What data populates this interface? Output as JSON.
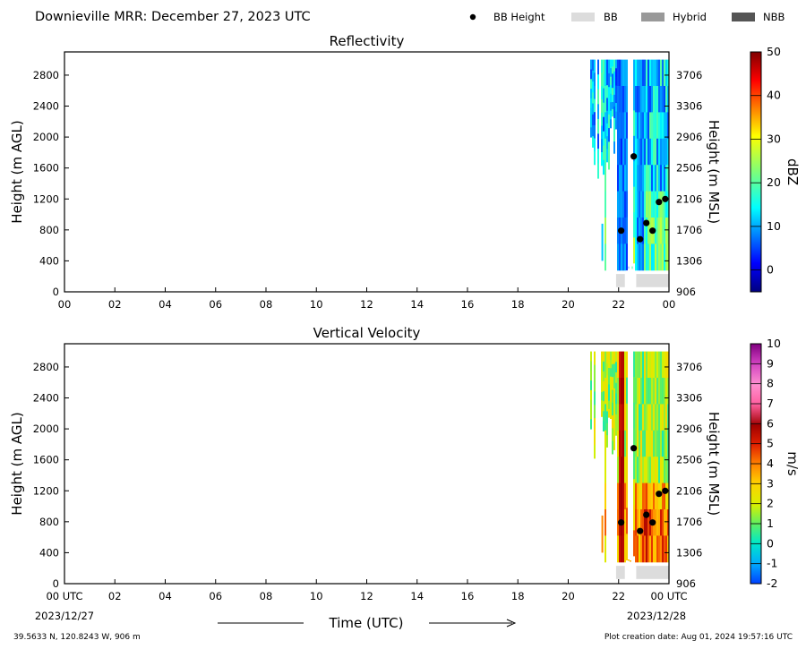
{
  "header": {
    "title": "Downieville MRR:  December 27, 2023 UTC",
    "legend": [
      {
        "label": "BB Height",
        "marker": "dot",
        "color": "#000000"
      },
      {
        "label": "BB",
        "marker": "box",
        "color": "#dcdcdc"
      },
      {
        "label": "Hybrid",
        "marker": "box",
        "color": "#999999"
      },
      {
        "label": "NBB",
        "marker": "box",
        "color": "#555555"
      }
    ]
  },
  "footer": {
    "location": "39.5633 N, 120.8243 W, 906 m",
    "creation": "Plot creation date: Aug 01, 2024 19:57:16 UTC",
    "start_date": "2023/12/27",
    "end_date": "2023/12/28",
    "xlabel": "Time (UTC)"
  },
  "chart_data": [
    {
      "type": "heatmap",
      "title": "Reflectivity",
      "ylabel": "Height (m AGL)",
      "y2label": "Height (m MSL)",
      "xticks": [
        "00",
        "02",
        "04",
        "06",
        "08",
        "10",
        "12",
        "14",
        "16",
        "18",
        "20",
        "22",
        "00"
      ],
      "xlim": [
        0,
        24
      ],
      "yticks": [
        0,
        400,
        800,
        1200,
        1600,
        2000,
        2400,
        2800
      ],
      "ylim": [
        0,
        3100
      ],
      "y2ticks": [
        906,
        1306,
        1706,
        2106,
        2506,
        2906,
        3306,
        3706
      ],
      "colorbar": {
        "label": "dBZ",
        "min": -5,
        "max": 50,
        "ticks": [
          0,
          10,
          20,
          30,
          40,
          50
        ],
        "colormap": "jet"
      },
      "data_extent_hours": [
        20.9,
        24.0
      ],
      "bright_band_points": [
        {
          "x": 22.1,
          "y": 790
        },
        {
          "x": 22.6,
          "y": 1750
        },
        {
          "x": 22.85,
          "y": 680
        },
        {
          "x": 23.1,
          "y": 890
        },
        {
          "x": 23.35,
          "y": 790
        },
        {
          "x": 23.6,
          "y": 1160
        },
        {
          "x": 23.85,
          "y": 1200
        }
      ],
      "bb_type_bars": [
        {
          "start": 21.9,
          "end": 22.25,
          "type": "BB"
        },
        {
          "start": 22.7,
          "end": 24.0,
          "type": "BB"
        }
      ]
    },
    {
      "type": "heatmap",
      "title": "Vertical Velocity",
      "ylabel": "Height (m AGL)",
      "y2label": "Height (m MSL)",
      "xticks": [
        "00 UTC",
        "02",
        "04",
        "06",
        "08",
        "10",
        "12",
        "14",
        "16",
        "18",
        "20",
        "22",
        "00 UTC"
      ],
      "xlim": [
        0,
        24
      ],
      "yticks": [
        0,
        400,
        800,
        1200,
        1600,
        2000,
        2400,
        2800
      ],
      "ylim": [
        0,
        3100
      ],
      "y2ticks": [
        906,
        1306,
        1706,
        2106,
        2506,
        2906,
        3306,
        3706
      ],
      "colorbar": {
        "label": "m/s",
        "min": -2,
        "max": 10,
        "ticks": [
          -2,
          -1,
          0,
          1,
          2,
          3,
          4,
          5,
          6,
          7,
          8,
          9,
          10
        ],
        "colormap": "velocity"
      },
      "data_extent_hours": [
        20.9,
        24.0
      ],
      "bright_band_points": [
        {
          "x": 22.1,
          "y": 790
        },
        {
          "x": 22.6,
          "y": 1750
        },
        {
          "x": 22.85,
          "y": 680
        },
        {
          "x": 23.1,
          "y": 890
        },
        {
          "x": 23.35,
          "y": 790
        },
        {
          "x": 23.6,
          "y": 1160
        },
        {
          "x": 23.85,
          "y": 1200
        }
      ],
      "bb_type_bars": [
        {
          "start": 21.9,
          "end": 22.25,
          "type": "BB"
        },
        {
          "start": 22.7,
          "end": 24.0,
          "type": "BB"
        }
      ]
    }
  ]
}
